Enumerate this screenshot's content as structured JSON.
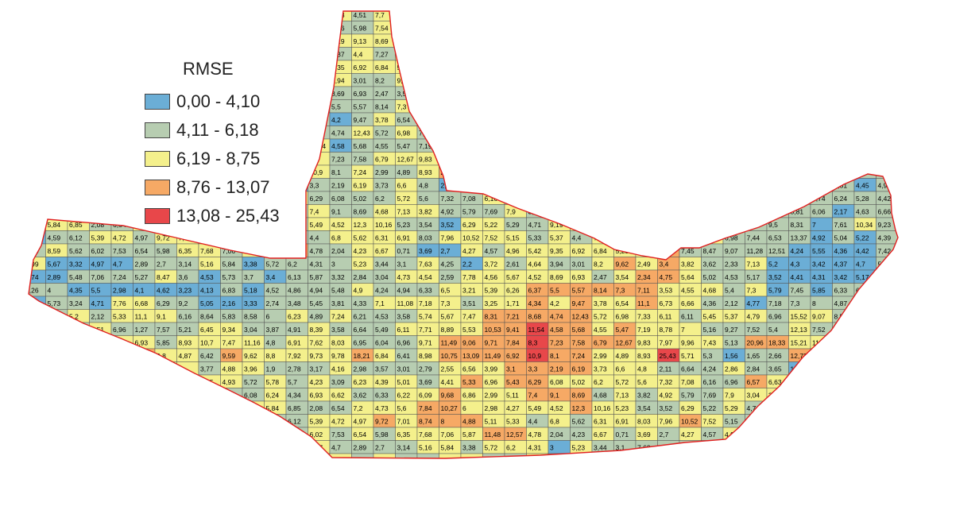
{
  "legend": {
    "title": "RMSE",
    "classes": [
      {
        "label": "0,00 - 4,10",
        "color": "#6baed6"
      },
      {
        "label": "4,11 - 6,18",
        "color": "#b7cdb1"
      },
      {
        "label": "6,19 - 8,75",
        "color": "#f4f08c"
      },
      {
        "label": "8,76 - 13,07",
        "color": "#f6a965"
      },
      {
        "label": "13,08 - 25,43",
        "color": "#e8474a"
      }
    ]
  },
  "colors": {
    "grid_line": "#555555",
    "boundary": "#e02020",
    "background": "#ffffff"
  },
  "cell_values": [
    "5,33",
    "6,96",
    "5,43",
    "6,29",
    "6,08",
    "5,02",
    "6,2",
    "5,72",
    "5,6",
    "7,32",
    "7,08",
    "6,16",
    "6,96",
    "6,57",
    "6,63",
    "4,51",
    "7,7",
    "4,32",
    "6",
    "5,66",
    "4,74",
    "5,87",
    "6,21",
    "7,72",
    "5,76",
    "5,63",
    "5,74",
    "6,24",
    "5,28",
    "4,42",
    "6,08",
    "6,24",
    "4,34",
    "6,93",
    "6,62",
    "3,62",
    "6,33",
    "6,22",
    "6,09",
    "9,68",
    "6,86",
    "2,99",
    "5,11",
    "7,4",
    "9,1",
    "8,69",
    "4,68",
    "7,13",
    "3,82",
    "4,92",
    "5,79",
    "7,69",
    "7,9",
    "3,04",
    "3,16",
    "5,98",
    "7,54",
    "10,88",
    "6,08",
    "3,72",
    "6,25",
    "6,11",
    "1,45",
    "5,74",
    "6,18",
    "5,81",
    "6,06",
    "2,17",
    "4,63",
    "6,66",
    "6,24",
    "5,84",
    "6,85",
    "2,08",
    "6,54",
    "7,2",
    "4,73",
    "5,6",
    "7,84",
    "10,27",
    "6",
    "2,98",
    "4,27",
    "5,49",
    "4,52",
    "12,3",
    "10,16",
    "5,23",
    "3,54",
    "3,52",
    "6,29",
    "5,22",
    "5,29",
    "4,71",
    "9,19",
    "9,13",
    "8,69",
    "12,54",
    "2,16",
    "2,67",
    "6,32",
    "6,39",
    "5,82",
    "7,14",
    "9,5",
    "8,31",
    "7",
    "7,61",
    "10,34",
    "9,23",
    "4,27",
    "4,59",
    "6,12",
    "5,39",
    "4,72",
    "4,97",
    "9,72",
    "7,01",
    "8,74",
    "8",
    "4,88",
    "5,11",
    "5,33",
    "4,4",
    "6,8",
    "5,62",
    "6,31",
    "6,91",
    "8,03",
    "7,96",
    "10,52",
    "7,52",
    "5,15",
    "5,33",
    "5,37",
    "4,4",
    "7,27",
    "6,95",
    "6,11",
    "6,88",
    "6,13",
    "7,62",
    "6,98",
    "7,44",
    "6,53",
    "13,37",
    "4,92",
    "5,04",
    "5,22",
    "4,39",
    "4,55",
    "8,59",
    "5,62",
    "6,02",
    "7,53",
    "6,54",
    "5,98",
    "6,35",
    "7,68",
    "7,06",
    "5,87",
    "11,48",
    "12,57",
    "4,78",
    "2,04",
    "4,23",
    "6,67",
    "0,71",
    "3,69",
    "2,7",
    "4,27",
    "4,57",
    "4,96",
    "5,42",
    "9,35",
    "6,92",
    "6,84",
    "5,23",
    "6,97",
    "6,59",
    "7,45",
    "8,47",
    "9,07",
    "11,28",
    "12,51",
    "4,24",
    "5,55",
    "4,36",
    "4,42",
    "7,42",
    "6,99",
    "5,67",
    "3,32",
    "4,97",
    "4,7",
    "2,89",
    "2,7",
    "3,14",
    "5,16",
    "5,84",
    "3,38",
    "5,72",
    "6,2",
    "4,31",
    "3",
    "5,23",
    "3,44",
    "3,1",
    "7,63",
    "4,25",
    "2,2",
    "3,72",
    "2,61",
    "4,64",
    "3,94",
    "3,01",
    "8,2",
    "9,62",
    "2,49",
    "3,4",
    "3,82",
    "3,62",
    "2,33",
    "7,13",
    "5,2",
    "4,3",
    "3,42",
    "4,37",
    "4,7",
    "5,03",
    "3,74",
    "2,89",
    "5,48",
    "7,06",
    "7,24",
    "5,27",
    "8,47",
    "3,6",
    "4,53",
    "5,73",
    "3,7",
    "3,4",
    "6,13",
    "5,87",
    "3,32",
    "2,84",
    "3,04",
    "4,73",
    "4,54",
    "2,59",
    "7,78",
    "4,56",
    "5,67",
    "4,52",
    "8,69",
    "6,93",
    "2,47",
    "3,54",
    "2,34",
    "4,75",
    "5,64",
    "5,02",
    "4,53",
    "5,17",
    "3,52",
    "4,41",
    "4,31",
    "3,42",
    "5,17",
    "5,46",
    "4,26",
    "4",
    "4,35",
    "5,5",
    "2,98",
    "4,1",
    "4,62",
    "3,23",
    "4,13",
    "6,83",
    "5,18",
    "4,52",
    "4,86",
    "4,94",
    "5,48",
    "4,9",
    "4,24",
    "4,94",
    "6,33",
    "6,5",
    "3,21",
    "5,39",
    "6,26",
    "6,37",
    "5,5",
    "5,57",
    "8,14",
    "7,3",
    "7,11",
    "3,53",
    "4,55",
    "4,68",
    "5,4",
    "7,3",
    "5,79",
    "7,45",
    "5,85",
    "6,33",
    "6,94",
    "2,99",
    "3,19",
    "5,73",
    "3,24",
    "4,71",
    "7,76",
    "6,68",
    "6,29",
    "9,2",
    "5,05",
    "2,16",
    "3,33",
    "2,74",
    "3,48",
    "5,45",
    "3,81",
    "4,33",
    "7,1",
    "11,08",
    "7,18",
    "7,3",
    "3,51",
    "3,25",
    "1,71",
    "4,34",
    "4,2",
    "9,47",
    "3,78",
    "6,54",
    "11,1",
    "6,73",
    "6,66",
    "4,36",
    "2,12",
    "4,77",
    "7,18",
    "7,3",
    "8",
    "4,87",
    "5,77",
    "5,08",
    "4,68",
    "4,25",
    "5,2",
    "2,12",
    "5,33",
    "11,1",
    "9,1",
    "6,16",
    "8,64",
    "5,83",
    "8,58",
    "6",
    "6,23",
    "4,89",
    "7,24",
    "6,21",
    "4,53",
    "3,58",
    "5,74",
    "5,67",
    "7,47",
    "8,31",
    "7,21",
    "8,68",
    "4,74",
    "12,43",
    "5,72",
    "6,98",
    "7,33",
    "6,11",
    "6,11",
    "5,45",
    "5,37",
    "4,79",
    "6,96",
    "15,52",
    "9,07",
    "8,5",
    "3,73",
    "5,28",
    "6",
    "3,01",
    "4,3",
    "5,51",
    "6,96",
    "1,27",
    "7,57",
    "5,21",
    "6,45",
    "9,34",
    "3,04",
    "3,87",
    "4,91",
    "8,39",
    "3,58",
    "6,64",
    "5,49",
    "6,11",
    "7,71",
    "8,89",
    "5,53",
    "10,53",
    "9,41",
    "11,54",
    "4,58",
    "5,68",
    "4,55",
    "5,47",
    "7,19",
    "8,78",
    "7",
    "5,16",
    "9,27",
    "7,52",
    "5,4",
    "12,13",
    "7,52",
    "8",
    "9,59",
    "8,28",
    "4,31",
    "5,98",
    "7,7",
    "12,14",
    "7,27",
    "6,93",
    "5,85",
    "8,93",
    "10,7",
    "7,47",
    "11,16",
    "4,8",
    "6,91",
    "7,62",
    "8,03",
    "6,95",
    "6,04",
    "6,96",
    "9,71",
    "11,49",
    "9,06",
    "9,71",
    "7,84",
    "8,3",
    "7,23",
    "7,58",
    "6,79",
    "12,67",
    "9,83",
    "7,97",
    "9,96",
    "7,43",
    "5,13",
    "20,96",
    "18,33",
    "15,21",
    "11,98",
    "7,68",
    "7,97",
    "15,71",
    "16,76",
    "23,7",
    "6,09",
    "8,54",
    "8,96",
    "18,2",
    "9,8",
    "4,87",
    "6,42",
    "9,59",
    "9,62",
    "8,8",
    "7,92",
    "9,73",
    "9,78",
    "18,21",
    "6,84",
    "6,41",
    "8,98",
    "10,75",
    "13,09",
    "11,49",
    "6,92",
    "10,9",
    "8,1",
    "7,24",
    "2,99",
    "4,89",
    "8,93",
    "25,43",
    "5,71",
    "5,3",
    "1,56",
    "1,65",
    "2,66",
    "12,73",
    "11,06",
    "9,74",
    "8,85",
    "3,07",
    "3,9",
    "5,8",
    "1,22",
    "4,66",
    "6,1",
    "3,51",
    "4,3",
    "4",
    "3,77",
    "4,88",
    "3,96",
    "1,9",
    "2,78",
    "3,17",
    "4,16",
    "2,98",
    "3,57",
    "3,01",
    "2,79",
    "2,55",
    "6,56",
    "3,99",
    "3,1",
    "3,3",
    "2,19",
    "6,19",
    "3,73",
    "6,6",
    "4,8",
    "2,11",
    "6,64",
    "4,24",
    "2,86",
    "2,84",
    "3,65",
    "1,69",
    "3,08",
    "4,95",
    "3,03",
    "1,96",
    "5,22",
    "3,08",
    "4,43",
    "4,59",
    "4,78",
    "5,06",
    "4,41",
    "3,51",
    "4,45",
    "4,93",
    "5,72",
    "5,78",
    "5,7",
    "4,23",
    "3,09",
    "6,23",
    "4,39",
    "5,01",
    "3,69",
    "4,41"
  ]
}
